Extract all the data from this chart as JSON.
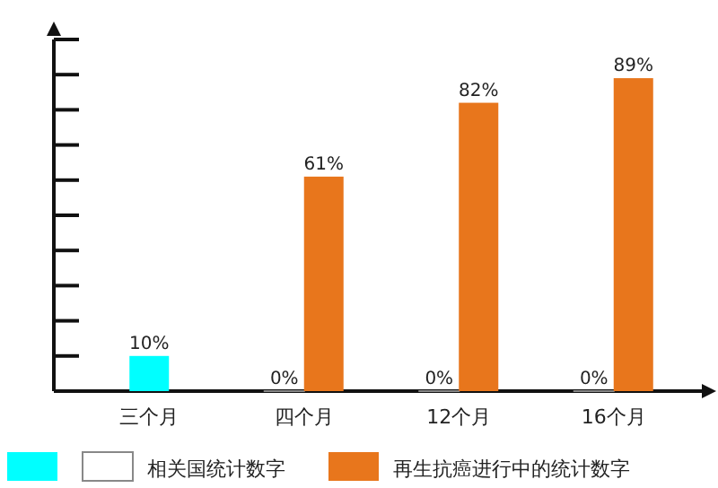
{
  "chart_data": {
    "type": "bar",
    "categories": [
      "三个月",
      "四个月",
      "12个月",
      "16个月"
    ],
    "series": [
      {
        "color": "#00ffff",
        "values": [
          10,
          null,
          null,
          null
        ],
        "value_labels": [
          "10%",
          null,
          null,
          null
        ]
      },
      {
        "name": "相关国统计数字",
        "color": "#ffffff",
        "values": [
          null,
          0,
          0,
          0
        ],
        "value_labels": [
          null,
          "0%",
          "0%",
          "0%"
        ]
      },
      {
        "name": "再生抗癌进行中的统计数字",
        "color": "#e8761c",
        "values": [
          null,
          61,
          82,
          89
        ],
        "value_labels": [
          null,
          "61%",
          "82%",
          "89%"
        ]
      }
    ],
    "ylim": [
      0,
      100
    ],
    "yticks": [
      {
        "value": 10,
        "label": null
      },
      {
        "value": 20,
        "label": null
      },
      {
        "value": 30,
        "label": null
      },
      {
        "value": 40,
        "label": null
      },
      {
        "value": 50,
        "label": null
      },
      {
        "value": 60,
        "label": null
      },
      {
        "value": 70,
        "label": null
      },
      {
        "value": 80,
        "label": null
      },
      {
        "value": 90,
        "label": null
      },
      {
        "value": 100,
        "label": null
      }
    ],
    "legend": "bottom"
  }
}
